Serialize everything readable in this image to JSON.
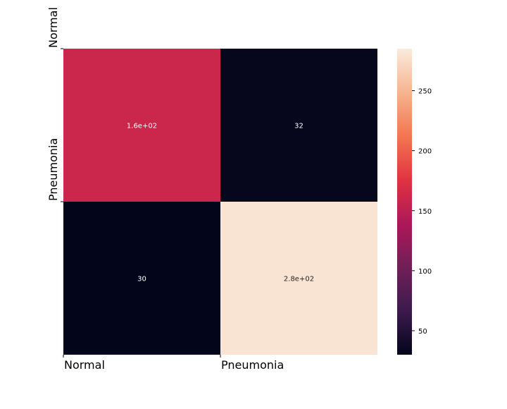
{
  "chart_data": {
    "type": "heatmap",
    "title": "",
    "xlabel": "",
    "ylabel": "",
    "x_categories": [
      "Normal",
      "Pneumonia"
    ],
    "y_categories": [
      "Normal",
      "Pneumonia"
    ],
    "values": [
      [
        160,
        32
      ],
      [
        30,
        280
      ]
    ],
    "cell_labels": [
      [
        "1.6e+02",
        "32"
      ],
      [
        "30",
        "2.8e+02"
      ]
    ],
    "colorbar": {
      "range": [
        30,
        285
      ],
      "ticks": [
        50,
        100,
        150,
        200,
        250
      ],
      "tick_labels": [
        "50",
        "100",
        "150",
        "200",
        "250"
      ]
    },
    "colormap": [
      "#03051a",
      "#3c1a4e",
      "#701f57",
      "#ad1759",
      "#e13342",
      "#f37651",
      "#f6b48f",
      "#faebdd"
    ],
    "grid": false,
    "legend": "colorbar-right"
  }
}
